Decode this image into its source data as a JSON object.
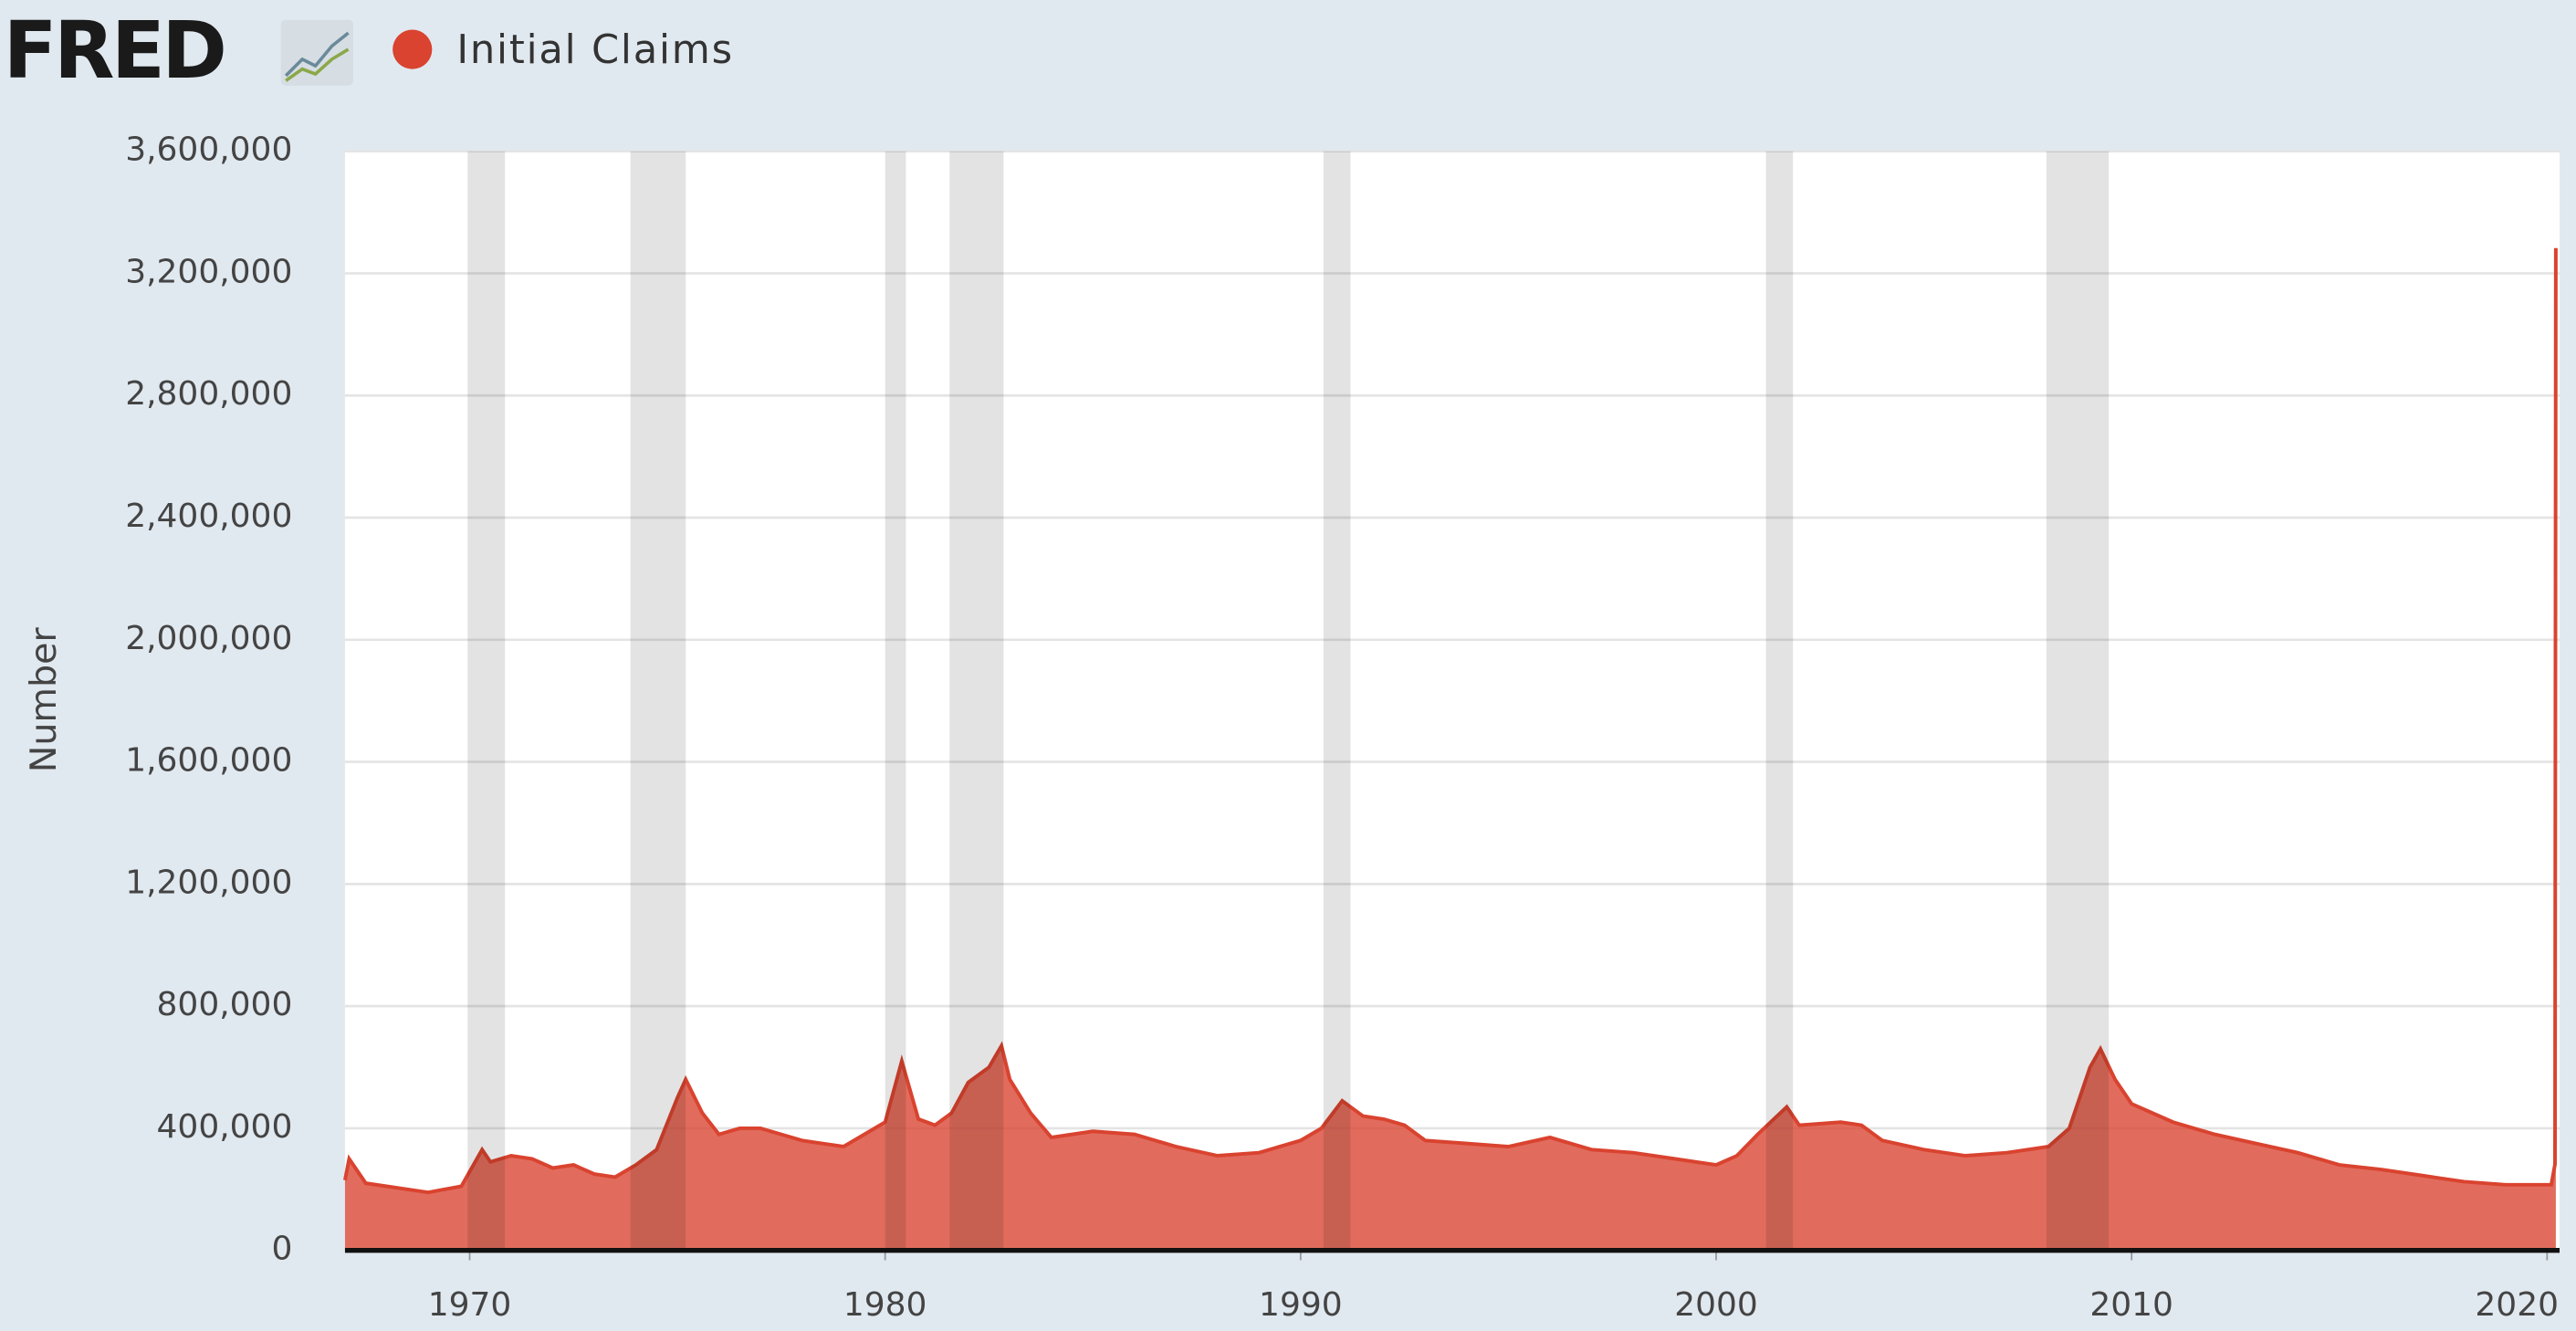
{
  "header": {
    "logo": "FRED"
  },
  "chart_data": {
    "type": "area",
    "y_label": "Number",
    "grid": true,
    "xlim": [
      1967.0,
      2020.3
    ],
    "xticks": [
      1970,
      1980,
      1990,
      2000,
      2010,
      2020
    ],
    "ylim": [
      0,
      3600000
    ],
    "yticks": [
      0,
      {
        "value": 400000,
        "label": "400,000"
      },
      {
        "value": 800000,
        "label": "800,000"
      },
      {
        "value": 1200000,
        "label": "1,200,000"
      },
      {
        "value": 1600000,
        "label": "1,600,000"
      },
      {
        "value": 2000000,
        "label": "2,000,000"
      },
      {
        "value": 2400000,
        "label": "2,400,000"
      },
      {
        "value": 2800000,
        "label": "2,800,000"
      },
      {
        "value": 3200000,
        "label": "3,200,000"
      },
      {
        "value": 3600000,
        "label": "3,600,000"
      }
    ],
    "recessions": [
      [
        1969.95,
        1970.85
      ],
      [
        1973.87,
        1975.2
      ],
      [
        1980.0,
        1980.5
      ],
      [
        1981.55,
        1982.85
      ],
      [
        1990.55,
        1991.2
      ],
      [
        2001.2,
        2001.85
      ],
      [
        2007.95,
        2009.45
      ]
    ],
    "x": [
      1967.0,
      1967.1,
      1967.5,
      1968.0,
      1969.0,
      1969.8,
      1970.3,
      1970.5,
      1971.0,
      1971.5,
      1972.0,
      1972.5,
      1973.0,
      1973.5,
      1974.0,
      1974.5,
      1975.0,
      1975.2,
      1975.6,
      1976.0,
      1976.5,
      1977.0,
      1977.5,
      1978.0,
      1978.5,
      1979.0,
      1979.5,
      1980.0,
      1980.4,
      1980.8,
      1981.2,
      1981.6,
      1982.0,
      1982.5,
      1982.8,
      1983.0,
      1983.5,
      1984.0,
      1985.0,
      1986.0,
      1987.0,
      1988.0,
      1989.0,
      1990.0,
      1990.5,
      1991.0,
      1991.5,
      1992.0,
      1992.5,
      1993.0,
      1994.0,
      1995.0,
      1996.0,
      1997.0,
      1998.0,
      1999.0,
      2000.0,
      2000.5,
      2001.0,
      2001.7,
      2002.0,
      2003.0,
      2003.5,
      2004.0,
      2005.0,
      2006.0,
      2007.0,
      2008.0,
      2008.5,
      2009.0,
      2009.25,
      2009.6,
      2010.0,
      2011.0,
      2012.0,
      2013.0,
      2014.0,
      2015.0,
      2016.0,
      2017.0,
      2018.0,
      2019.0,
      2020.1,
      2020.19,
      2020.21
    ],
    "series": [
      {
        "name": "Initial Claims",
        "color": "#d9432f",
        "values": [
          230000,
          300000,
          220000,
          210000,
          190000,
          210000,
          330000,
          290000,
          310000,
          300000,
          270000,
          280000,
          250000,
          240000,
          280000,
          330000,
          500000,
          560000,
          450000,
          380000,
          400000,
          400000,
          380000,
          360000,
          350000,
          340000,
          380000,
          420000,
          620000,
          430000,
          410000,
          450000,
          550000,
          600000,
          670000,
          560000,
          450000,
          370000,
          390000,
          380000,
          340000,
          310000,
          320000,
          360000,
          400000,
          490000,
          440000,
          430000,
          410000,
          360000,
          350000,
          340000,
          370000,
          330000,
          320000,
          300000,
          280000,
          310000,
          380000,
          470000,
          410000,
          420000,
          410000,
          360000,
          330000,
          310000,
          320000,
          340000,
          400000,
          600000,
          660000,
          560000,
          480000,
          420000,
          380000,
          350000,
          320000,
          280000,
          265000,
          245000,
          225000,
          215000,
          215000,
          282000,
          3283000
        ]
      }
    ]
  }
}
